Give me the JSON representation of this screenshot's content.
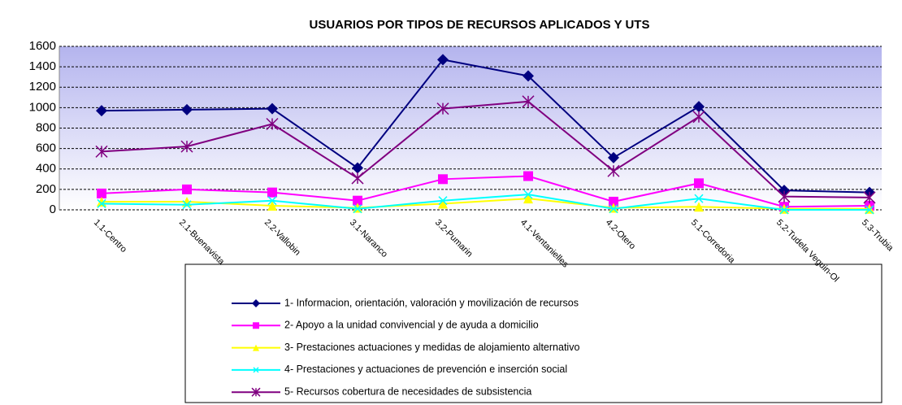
{
  "chart_data": {
    "type": "line",
    "title": "USUARIOS POR TIPOS DE RECURSOS APLICADOS  Y UTS",
    "categories": [
      "1.1-Centro",
      "2.1-Buenavista",
      "2.2-Vallobin",
      "3.1-Naranco",
      "3.2-Pumarin",
      "4.1-Ventanielles",
      "4.2-Otero",
      "5.1-Corredoria",
      "5.2-Tudela Veguin-Ol",
      "5.3-Trubia"
    ],
    "series": [
      {
        "name": "1- Informacion, orientación, valoración y movilización de recursos",
        "color": "#000080",
        "marker": "diamond",
        "values": [
          970,
          980,
          990,
          410,
          1470,
          1310,
          510,
          1010,
          190,
          170
        ]
      },
      {
        "name": "2- Apoyo a la unidad convivencial y de ayuda a domicilio",
        "color": "#ff00ff",
        "marker": "square",
        "values": [
          160,
          200,
          170,
          90,
          300,
          330,
          80,
          260,
          30,
          40
        ]
      },
      {
        "name": "3- Prestaciones actuaciones y medidas de alojamiento alternativo",
        "color": "#ffff00",
        "marker": "triangle",
        "values": [
          80,
          80,
          40,
          20,
          60,
          110,
          20,
          30,
          10,
          10
        ]
      },
      {
        "name": "4- Prestaciones y actuaciones de prevención e inserción social",
        "color": "#00ffff",
        "marker": "x",
        "values": [
          60,
          50,
          90,
          10,
          90,
          150,
          10,
          110,
          0,
          0
        ]
      },
      {
        "name": "5- Recursos cobertura de necesidades de subsistencia",
        "color": "#800080",
        "marker": "star",
        "values": [
          570,
          620,
          840,
          310,
          990,
          1060,
          380,
          910,
          130,
          120
        ]
      }
    ],
    "ylim": [
      0,
      1600
    ],
    "yticks": [
      0,
      200,
      400,
      600,
      800,
      1000,
      1200,
      1400,
      1600
    ],
    "grid": true
  }
}
